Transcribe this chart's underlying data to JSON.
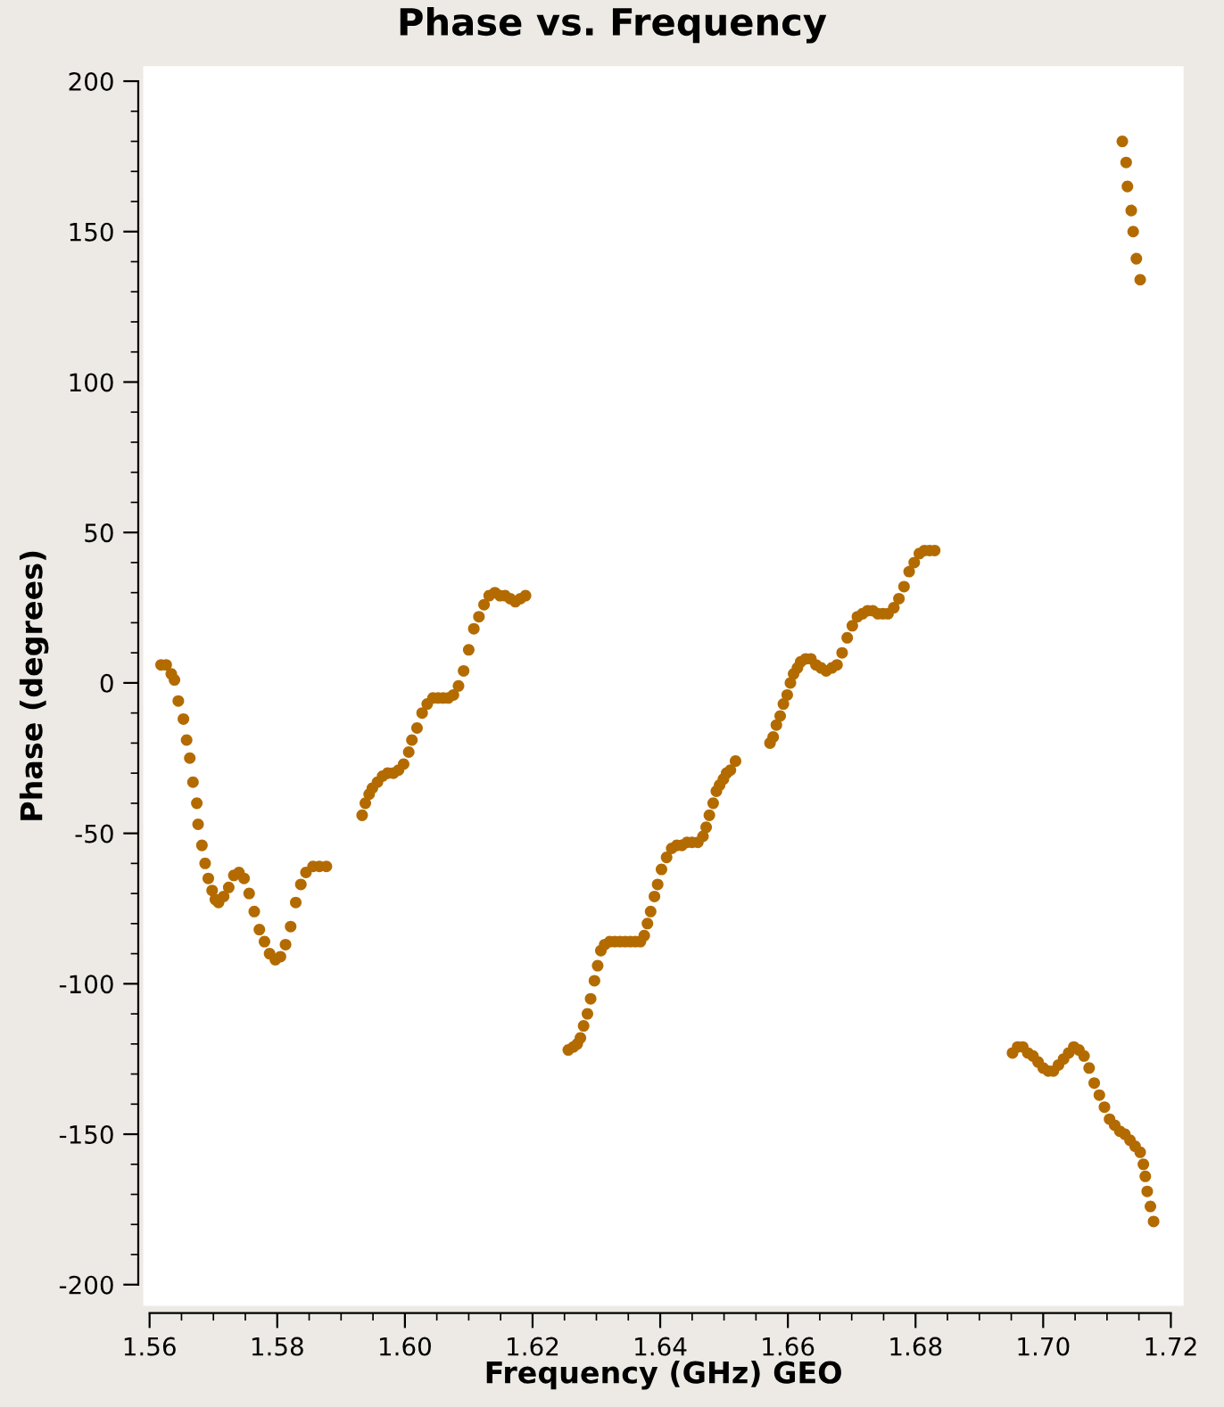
{
  "chart_data": {
    "type": "scatter",
    "title": "Phase vs. Frequency",
    "xlabel": "Frequency (GHz) GEO",
    "ylabel": "Phase (degrees)",
    "xlim": [
      1.559,
      1.722
    ],
    "ylim": [
      -207,
      205
    ],
    "xticks": [
      1.56,
      1.58,
      {
        "value": 1.6,
        "label": "1.60"
      },
      1.62,
      1.64,
      1.66,
      1.68,
      {
        "value": 1.7,
        "label": "1.70"
      },
      1.72
    ],
    "yticks": [
      -200,
      -150,
      -100,
      -50,
      0,
      50,
      100,
      150,
      200
    ],
    "grid": false,
    "marker": "circle",
    "series": [
      {
        "color": "#b36b00",
        "x": [
          1.5618,
          1.5626,
          1.5634,
          1.5639,
          1.5645,
          1.5653,
          1.5658,
          1.5663,
          1.5668,
          1.5674,
          1.5676,
          1.5682,
          1.5687,
          1.5692,
          1.5698,
          1.5703,
          1.5708,
          1.5716,
          1.5724,
          1.5732,
          1.574,
          1.5748,
          1.5756,
          1.5764,
          1.5772,
          1.578,
          1.5788,
          1.5797,
          1.5805,
          1.5813,
          1.5821,
          1.5829,
          1.5837,
          1.5845,
          1.5856,
          1.5866,
          1.5877,
          1.5933,
          1.5938,
          1.5944,
          1.5949,
          1.5957,
          1.5965,
          1.5973,
          1.5982,
          1.599,
          1.5998,
          1.6006,
          1.6011,
          1.6019,
          1.6027,
          1.6035,
          1.6044,
          1.6052,
          1.606,
          1.6068,
          1.6076,
          1.6084,
          1.6092,
          1.61,
          1.6108,
          1.6116,
          1.6124,
          1.6132,
          1.6141,
          1.6149,
          1.6157,
          1.6165,
          1.6173,
          1.6181,
          1.6189,
          1.6256,
          1.6264,
          1.627,
          1.6275,
          1.628,
          1.6286,
          1.6291,
          1.6297,
          1.6302,
          1.6307,
          1.6313,
          1.6321,
          1.6329,
          1.6337,
          1.6345,
          1.6353,
          1.6361,
          1.6369,
          1.6375,
          1.638,
          1.6385,
          1.6391,
          1.6396,
          1.6402,
          1.641,
          1.6418,
          1.6426,
          1.6434,
          1.6442,
          1.645,
          1.6459,
          1.6467,
          1.6472,
          1.6477,
          1.6483,
          1.6488,
          1.6493,
          1.6499,
          1.6504,
          1.651,
          1.6518,
          1.6572,
          1.6577,
          1.6582,
          1.6588,
          1.6593,
          1.6599,
          1.6604,
          1.6609,
          1.6615,
          1.662,
          1.6628,
          1.6636,
          1.6644,
          1.6652,
          1.666,
          1.6669,
          1.6677,
          1.6685,
          1.6693,
          1.6701,
          1.6709,
          1.6717,
          1.6725,
          1.6733,
          1.6741,
          1.6749,
          1.6757,
          1.6766,
          1.6774,
          1.6782,
          1.679,
          1.6798,
          1.6806,
          1.6814,
          1.6822,
          1.683,
          1.6952,
          1.696,
          1.6968,
          1.6976,
          1.6984,
          1.6992,
          1.7,
          1.7008,
          1.7016,
          1.7024,
          1.7032,
          1.704,
          1.7048,
          1.7056,
          1.7064,
          1.7072,
          1.708,
          1.7088,
          1.7096,
          1.7104,
          1.7112,
          1.712,
          1.7128,
          1.7136,
          1.7144,
          1.7152,
          1.7157,
          1.716,
          1.7163,
          1.7168,
          1.7173,
          1.7124,
          1.713,
          1.7132,
          1.7138,
          1.7141,
          1.7146,
          1.7152
        ],
        "values": [
          6,
          6,
          3,
          1,
          -6,
          -12,
          -19,
          -25,
          -33,
          -40,
          -47,
          -54,
          -60,
          -65,
          -69,
          -72,
          -73,
          -71,
          -68,
          -64,
          -63,
          -65,
          -70,
          -76,
          -82,
          -86,
          -90,
          -92,
          -91,
          -87,
          -81,
          -73,
          -67,
          -63,
          -61,
          -61,
          -61,
          -44,
          -40,
          -37,
          -35,
          -33,
          -31,
          -30,
          -30,
          -29,
          -27,
          -23,
          -19,
          -15,
          -10,
          -7,
          -5,
          -5,
          -5,
          -5,
          -4,
          -1,
          4,
          11,
          18,
          22,
          26,
          29,
          30,
          29,
          29,
          28,
          27,
          28,
          29,
          -122,
          -121,
          -120,
          -118,
          -114,
          -110,
          -105,
          -99,
          -94,
          -89,
          -87,
          -86,
          -86,
          -86,
          -86,
          -86,
          -86,
          -86,
          -84,
          -80,
          -76,
          -71,
          -67,
          -62,
          -58,
          -55,
          -54,
          -54,
          -53,
          -53,
          -53,
          -51,
          -48,
          -44,
          -40,
          -36,
          -34,
          -32,
          -30,
          -29,
          -26,
          -20,
          -18,
          -14,
          -11,
          -7,
          -4,
          0,
          3,
          5,
          7,
          8,
          8,
          6,
          5,
          4,
          5,
          6,
          10,
          15,
          19,
          22,
          23,
          24,
          24,
          23,
          23,
          23,
          25,
          28,
          32,
          37,
          40,
          43,
          44,
          44,
          44,
          -123,
          -121,
          -121,
          -123,
          -124,
          -126,
          -128,
          -129,
          -129,
          -127,
          -125,
          -123,
          -121,
          -122,
          -124,
          -128,
          -133,
          -137,
          -141,
          -145,
          -147,
          -149,
          -150,
          -152,
          -154,
          -156,
          -160,
          -164,
          -169,
          -174,
          -179,
          180,
          173,
          165,
          157,
          150,
          141,
          134
        ]
      }
    ]
  }
}
